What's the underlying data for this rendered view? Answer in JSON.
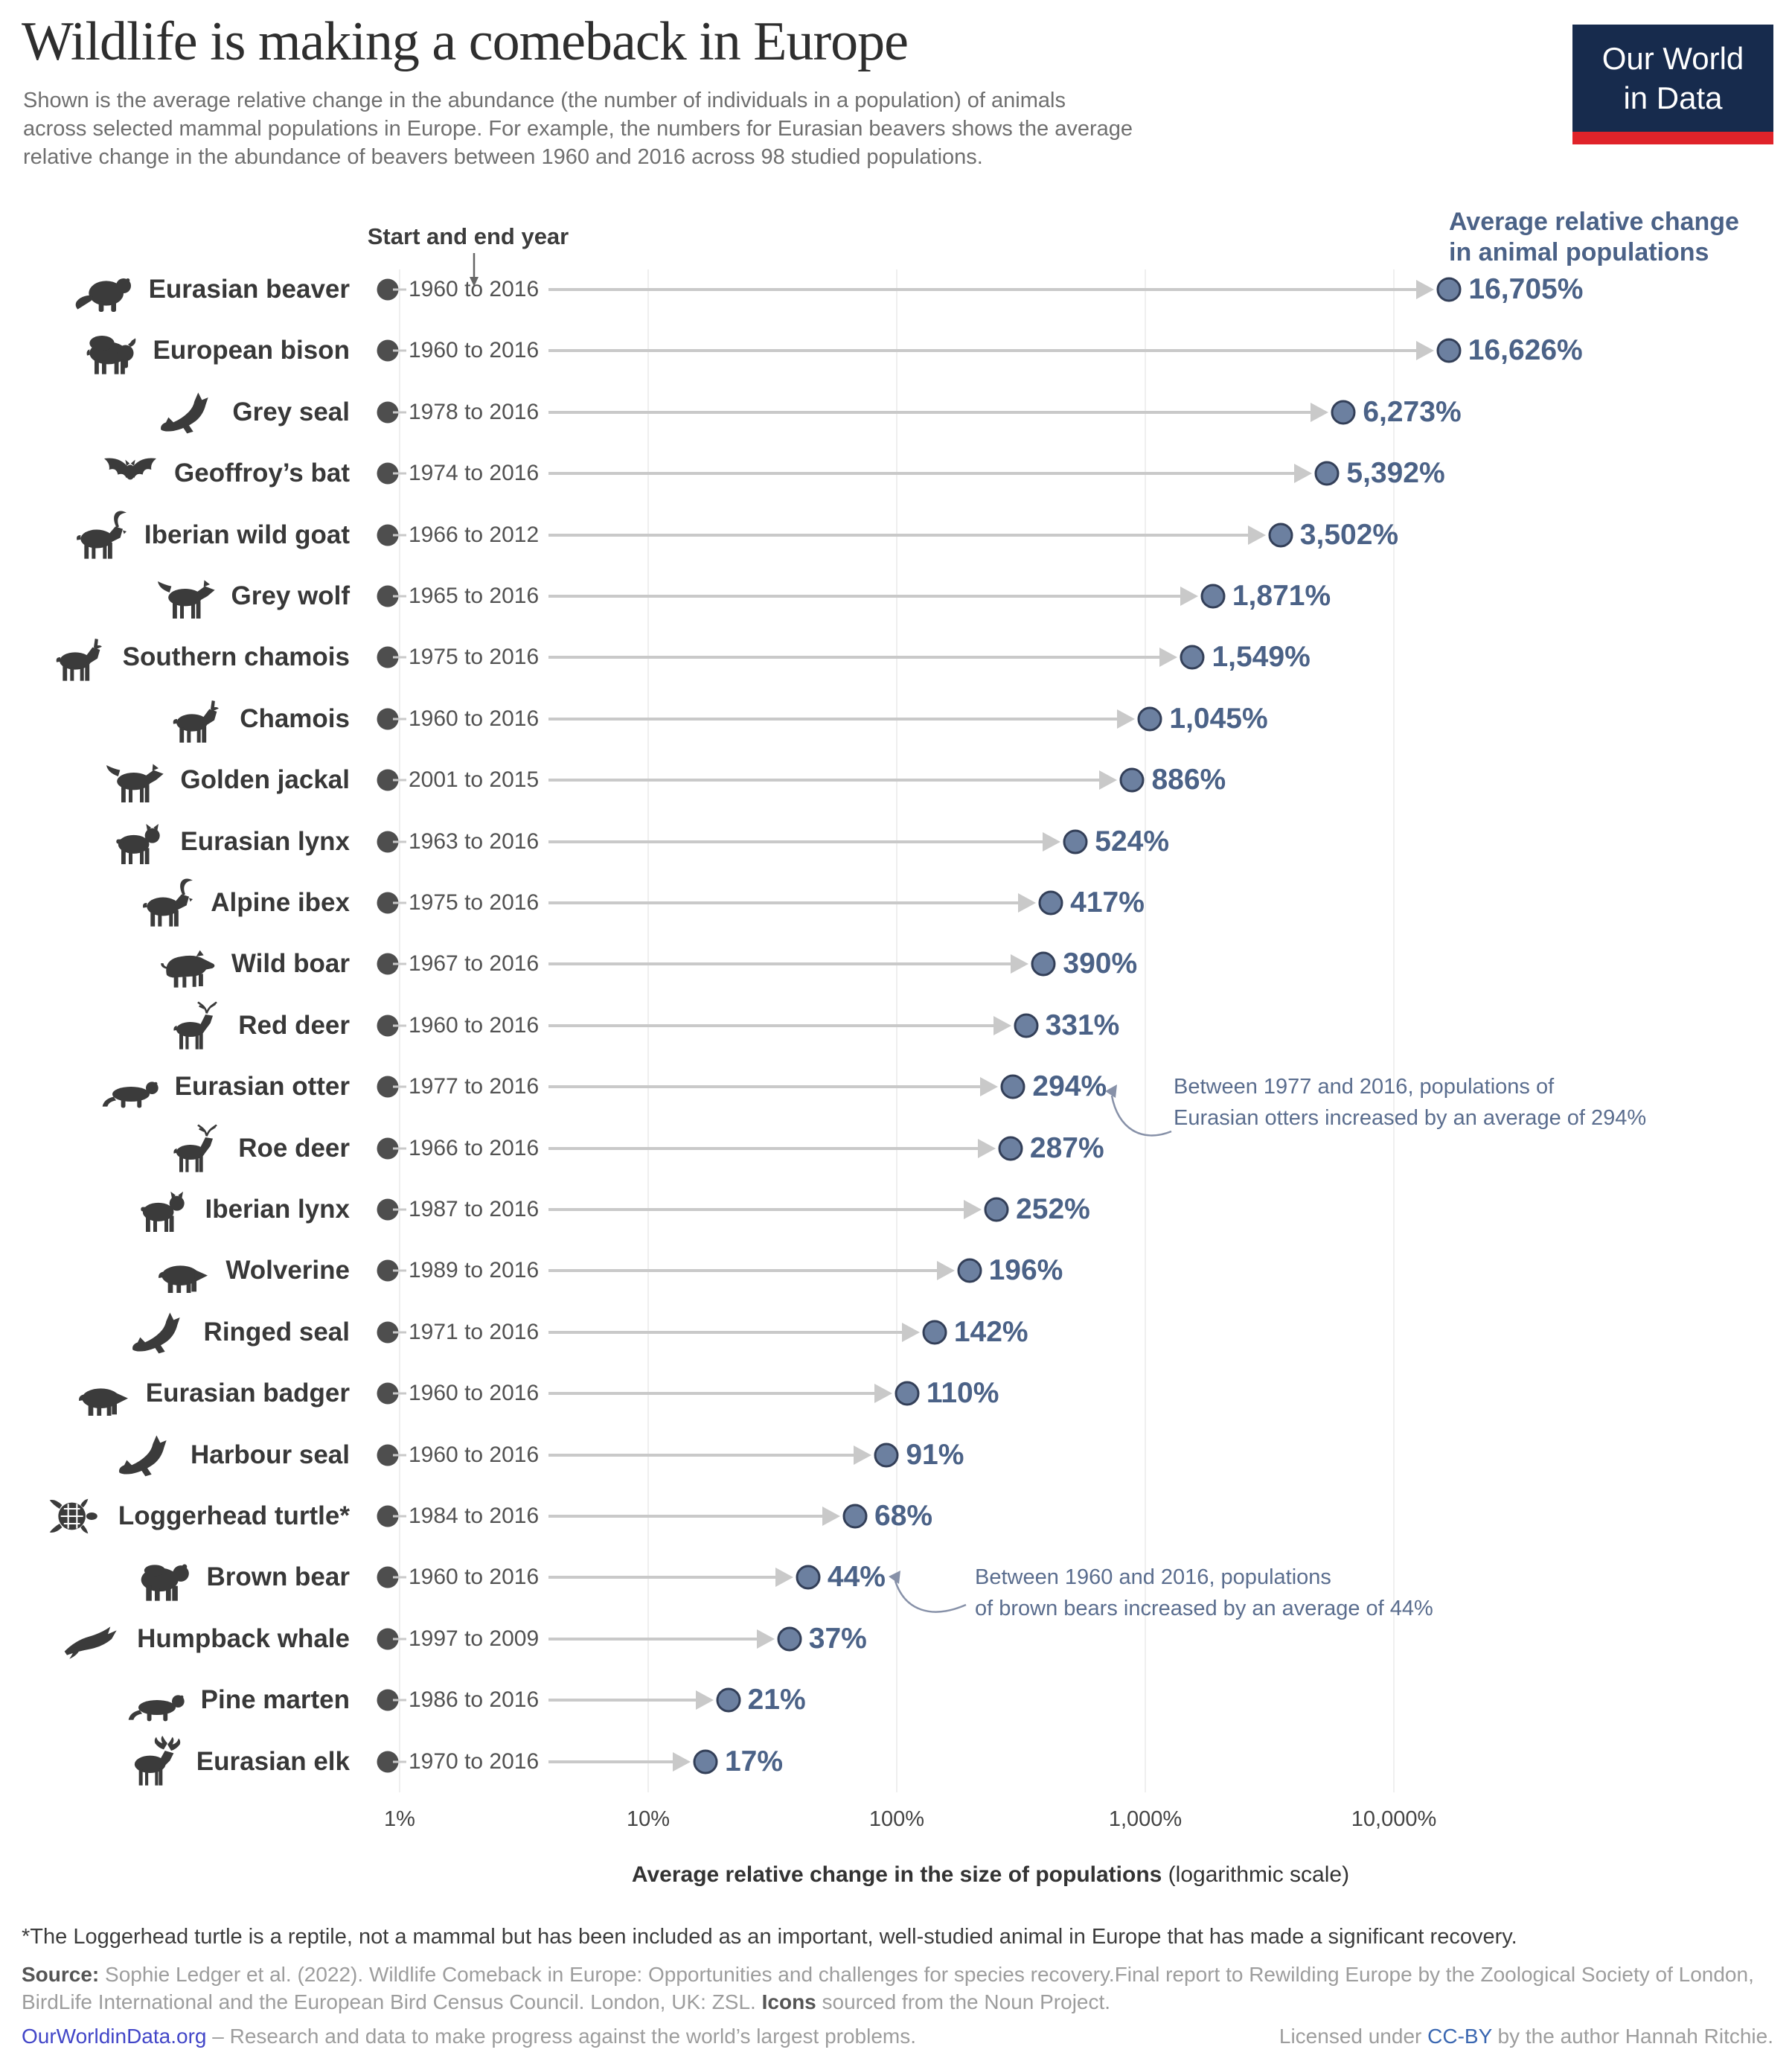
{
  "header": {
    "title": "Wildlife is making a comeback in Europe",
    "subtitle_lines": [
      "Shown is the average relative change in the abundance (the number of individuals in a population) of animals",
      "across selected mammal populations in Europe. For example, the numbers for Eurasian beavers shows the average",
      "relative change in the abundance of beavers between 1960 and 2016 across 98 studied populations."
    ],
    "logo": {
      "line1": "Our World",
      "line2": "in Data"
    }
  },
  "colors": {
    "accent_slate": "#4b6287",
    "end_dot_fill": "#6c80a0",
    "end_dot_stroke": "#333f58",
    "start_dot": "#4e4e4e",
    "connector_line": "#c9c9c9",
    "logo_navy": "#172b4d",
    "logo_red": "#e0232a",
    "site_link_blue": "#4246c8",
    "ccby_blue": "#3a67b1"
  },
  "chart_data": {
    "type": "bar",
    "orientation": "horizontal",
    "scale": "log",
    "title": "Wildlife is making a comeback in Europe",
    "start_col_header": "Start and end year",
    "value_axis_header": {
      "line1": "Average relative change",
      "line2": "in animal populations"
    },
    "categories": [
      "Eurasian beaver",
      "European bison",
      "Grey seal",
      "Geoffroy’s bat",
      "Iberian wild goat",
      "Grey wolf",
      "Southern chamois",
      "Chamois",
      "Golden jackal",
      "Eurasian lynx",
      "Alpine ibex",
      "Wild boar",
      "Red deer",
      "Eurasian otter",
      "Roe deer",
      "Iberian lynx",
      "Wolverine",
      "Ringed seal",
      "Eurasian badger",
      "Harbour seal",
      "Loggerhead turtle*",
      "Brown bear",
      "Humpback whale",
      "Pine marten",
      "Eurasian elk"
    ],
    "periods": [
      "1960 to 2016",
      "1960 to 2016",
      "1978 to 2016",
      "1974 to 2016",
      "1966 to 2012",
      "1965 to 2016",
      "1975 to 2016",
      "1960 to 2016",
      "2001 to 2015",
      "1963 to 2016",
      "1975 to 2016",
      "1967 to 2016",
      "1960 to 2016",
      "1977 to 2016",
      "1966 to 2016",
      "1987 to 2016",
      "1989 to 2016",
      "1971 to 2016",
      "1960 to 2016",
      "1960 to 2016",
      "1984 to 2016",
      "1960 to 2016",
      "1997 to 2009",
      "1986 to 2016",
      "1970 to 2016"
    ],
    "values": [
      16705,
      16626,
      6273,
      5392,
      3502,
      1871,
      1549,
      1045,
      886,
      524,
      417,
      390,
      331,
      294,
      287,
      252,
      196,
      142,
      110,
      91,
      68,
      44,
      37,
      21,
      17
    ],
    "value_labels": [
      "16,705%",
      "16,626%",
      "6,273%",
      "5,392%",
      "3,502%",
      "1,871%",
      "1,549%",
      "1,045%",
      "886%",
      "524%",
      "417%",
      "390%",
      "331%",
      "294%",
      "287%",
      "252%",
      "196%",
      "142%",
      "110%",
      "91%",
      "68%",
      "44%",
      "37%",
      "21%",
      "17%"
    ],
    "icons": [
      "beaver-icon",
      "bison-icon",
      "grey-seal-icon",
      "bat-icon",
      "wild-goat-icon",
      "wolf-icon",
      "southern-chamois-icon",
      "chamois-icon",
      "jackal-icon",
      "eurasian-lynx-icon",
      "ibex-icon",
      "boar-icon",
      "red-deer-icon",
      "otter-icon",
      "roe-deer-icon",
      "iberian-lynx-icon",
      "wolverine-icon",
      "ringed-seal-icon",
      "badger-icon",
      "harbour-seal-icon",
      "turtle-icon",
      "bear-icon",
      "whale-icon",
      "marten-icon",
      "elk-icon"
    ],
    "x_ticks": [
      "1%",
      "10%",
      "100%",
      "1,000%",
      "10,000%"
    ],
    "x_tick_values": [
      1,
      10,
      100,
      1000,
      10000
    ],
    "xlim": [
      1,
      100000
    ],
    "xlabel": "Average relative change in the size of populations",
    "xlabel_note": " (logarithmic scale)",
    "grid": true,
    "annotations": {
      "otter": {
        "line1": "Between 1977 and 2016, populations of",
        "line2": "Eurasian otters increased by an average of 294%"
      },
      "bear": {
        "line1": "Between 1960 and 2016, populations",
        "line2": "of brown bears increased by an average of 44%"
      }
    }
  },
  "footer": {
    "footnote": "*The Loggerhead turtle is a reptile, not a mammal but has been included as an important, well-studied animal in Europe that has made a significant recovery.",
    "source_label": "Source:",
    "source_text": " Sophie Ledger et al. (2022). Wildlife Comeback in Europe: Opportunities and challenges for species recovery.Final report to Rewilding Europe by the Zoological Society of London, BirdLife International and the European Bird Census Council. London, UK: ZSL. ",
    "icons_label": "Icons",
    "icons_text": " sourced from the Noun Project.",
    "site_link": "OurWorldinData.org",
    "site_tagline": " – Research and data to make progress against the world’s largest problems.",
    "license_prefix": "Licensed under ",
    "license_link": "CC-BY",
    "license_suffix": " by the author Hannah Ritchie."
  }
}
